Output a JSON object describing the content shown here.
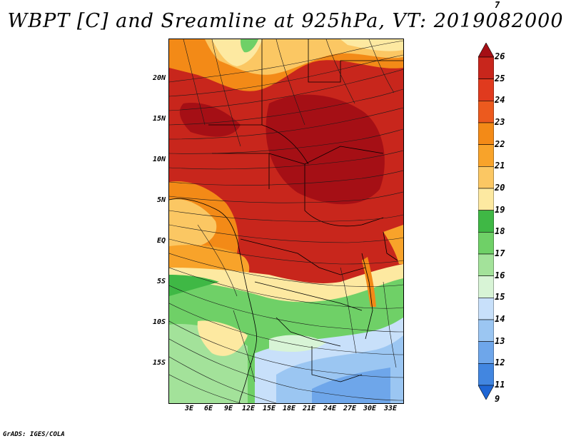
{
  "title": "WBPT [C] and Sreamline at 925hPa, VT: 2019082000",
  "credit": "GrADS: IGES/COLA",
  "lat_labels": [
    "20N",
    "15N",
    "10N",
    "5N",
    "EQ",
    "5S",
    "10S",
    "15S"
  ],
  "lon_labels": [
    "3E",
    "6E",
    "9E",
    "12E",
    "15E",
    "18E",
    "21E",
    "24E",
    "27E",
    "30E",
    "33E"
  ],
  "colorbar": {
    "labels": [
      "26",
      "25",
      "24",
      "23",
      "22",
      "21",
      "20",
      "19",
      "18",
      "17",
      "16",
      "15",
      "14",
      "13",
      "12",
      "11",
      "9",
      "7"
    ],
    "colors": [
      "#a50f15",
      "#c8261c",
      "#e03a1e",
      "#ec5a1e",
      "#f38a17",
      "#f8a32a",
      "#fbc763",
      "#fde9a1",
      "#3fb845",
      "#6fd067",
      "#a3e29a",
      "#d8f4d6",
      "#c8e0fa",
      "#9bc6f2",
      "#6ea6ea",
      "#4286e0",
      "#1f66d4"
    ]
  }
}
